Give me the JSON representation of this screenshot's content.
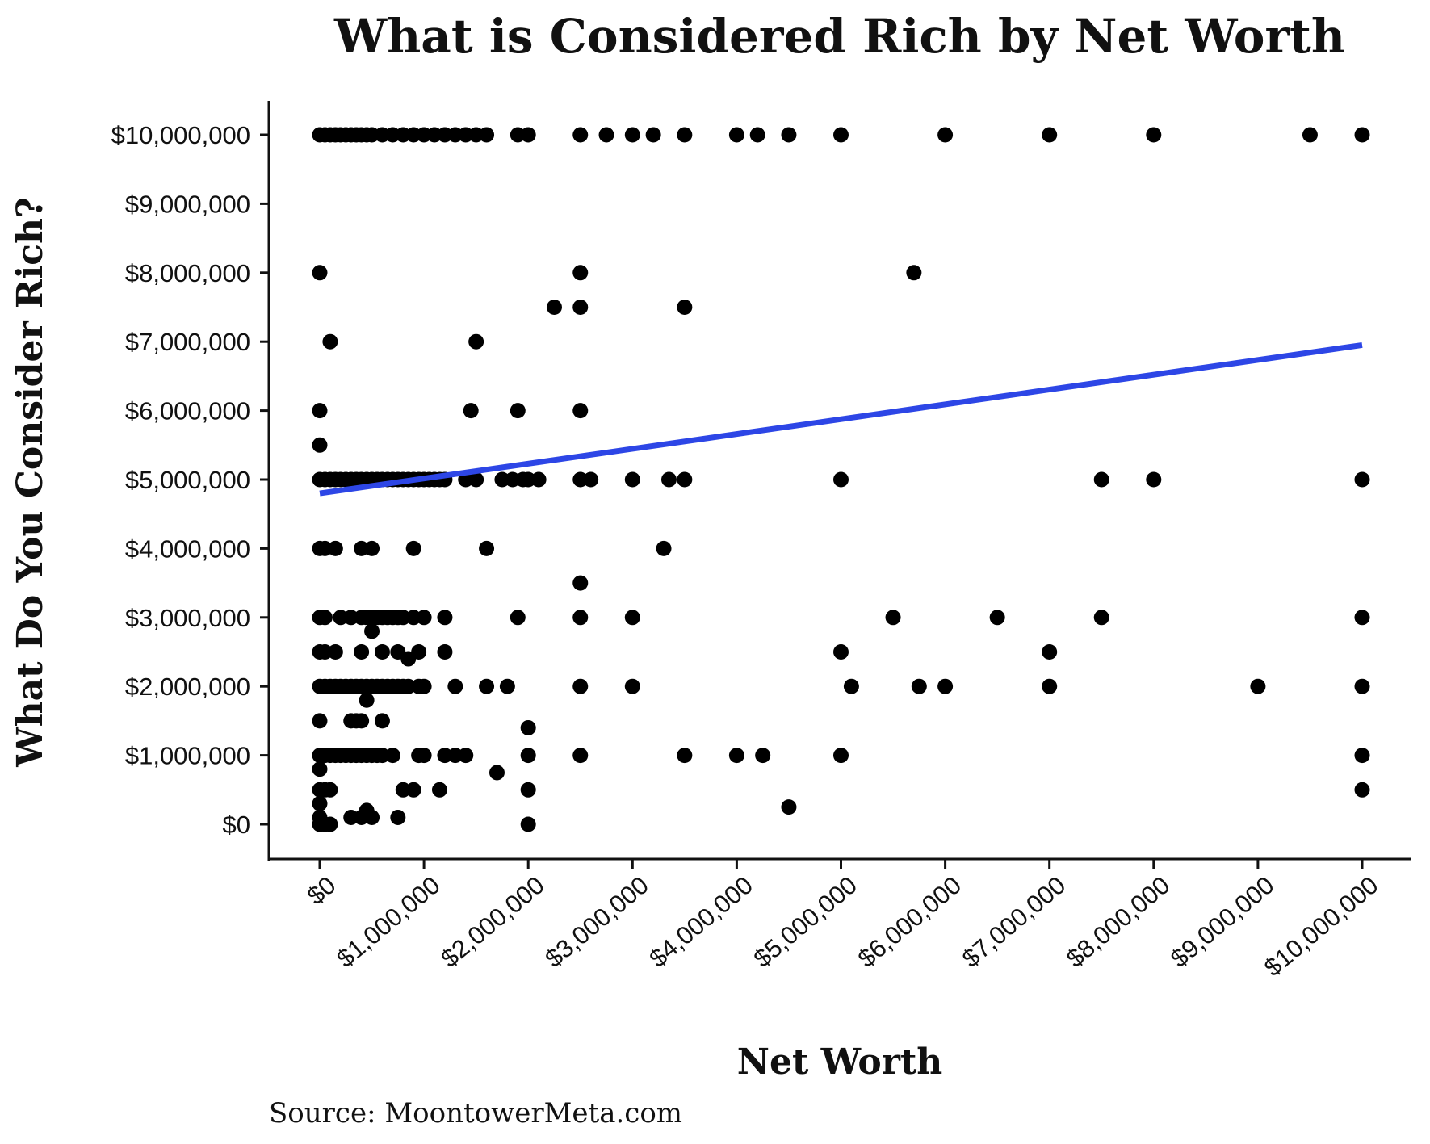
{
  "chart_data": {
    "type": "scatter",
    "title": "What is Considered Rich by Net Worth",
    "xlabel": "Net Worth",
    "ylabel": "What Do You Consider Rich?",
    "source": "Source: MoontowerMeta.com",
    "xlim": [
      0,
      10000000
    ],
    "ylim": [
      0,
      10000000
    ],
    "x_ticks": [
      0,
      1000000,
      2000000,
      3000000,
      4000000,
      5000000,
      6000000,
      7000000,
      8000000,
      9000000,
      10000000
    ],
    "y_ticks": [
      0,
      1000000,
      2000000,
      3000000,
      4000000,
      5000000,
      6000000,
      7000000,
      8000000,
      9000000,
      10000000
    ],
    "x_tick_labels": [
      "$0",
      "$1,000,000",
      "$2,000,000",
      "$3,000,000",
      "$4,000,000",
      "$5,000,000",
      "$6,000,000",
      "$7,000,000",
      "$8,000,000",
      "$9,000,000",
      "$10,000,000"
    ],
    "y_tick_labels": [
      "$0",
      "$1,000,000",
      "$2,000,000",
      "$3,000,000",
      "$4,000,000",
      "$5,000,000",
      "$6,000,000",
      "$7,000,000",
      "$8,000,000",
      "$9,000,000",
      "$10,000,000"
    ],
    "grid": false,
    "point_color": "#000000",
    "trend_color": "#2d46e6",
    "trendline": {
      "x": [
        0,
        10000000
      ],
      "y": [
        4800000,
        6950000
      ]
    },
    "points": [
      [
        0,
        10000000
      ],
      [
        50000,
        10000000
      ],
      [
        100000,
        10000000
      ],
      [
        150000,
        10000000
      ],
      [
        200000,
        10000000
      ],
      [
        250000,
        10000000
      ],
      [
        300000,
        10000000
      ],
      [
        350000,
        10000000
      ],
      [
        400000,
        10000000
      ],
      [
        450000,
        10000000
      ],
      [
        500000,
        10000000
      ],
      [
        600000,
        10000000
      ],
      [
        700000,
        10000000
      ],
      [
        800000,
        10000000
      ],
      [
        900000,
        10000000
      ],
      [
        1000000,
        10000000
      ],
      [
        1100000,
        10000000
      ],
      [
        1200000,
        10000000
      ],
      [
        1300000,
        10000000
      ],
      [
        1400000,
        10000000
      ],
      [
        1500000,
        10000000
      ],
      [
        1600000,
        10000000
      ],
      [
        1900000,
        10000000
      ],
      [
        2000000,
        10000000
      ],
      [
        2500000,
        10000000
      ],
      [
        2750000,
        10000000
      ],
      [
        3000000,
        10000000
      ],
      [
        3200000,
        10000000
      ],
      [
        3500000,
        10000000
      ],
      [
        4000000,
        10000000
      ],
      [
        4200000,
        10000000
      ],
      [
        4500000,
        10000000
      ],
      [
        5000000,
        10000000
      ],
      [
        6000000,
        10000000
      ],
      [
        7000000,
        10000000
      ],
      [
        8000000,
        10000000
      ],
      [
        9500000,
        10000000
      ],
      [
        10000000,
        10000000
      ],
      [
        0,
        8000000
      ],
      [
        2500000,
        8000000
      ],
      [
        5700000,
        8000000
      ],
      [
        2250000,
        7500000
      ],
      [
        2500000,
        7500000
      ],
      [
        3500000,
        7500000
      ],
      [
        100000,
        7000000
      ],
      [
        1500000,
        7000000
      ],
      [
        0,
        6000000
      ],
      [
        1450000,
        6000000
      ],
      [
        1900000,
        6000000
      ],
      [
        2500000,
        6000000
      ],
      [
        0,
        5500000
      ],
      [
        0,
        5000000
      ],
      [
        50000,
        5000000
      ],
      [
        100000,
        5000000
      ],
      [
        150000,
        5000000
      ],
      [
        200000,
        5000000
      ],
      [
        250000,
        5000000
      ],
      [
        300000,
        5000000
      ],
      [
        350000,
        5000000
      ],
      [
        400000,
        5000000
      ],
      [
        450000,
        5000000
      ],
      [
        500000,
        5000000
      ],
      [
        550000,
        5000000
      ],
      [
        600000,
        5000000
      ],
      [
        650000,
        5000000
      ],
      [
        700000,
        5000000
      ],
      [
        750000,
        5000000
      ],
      [
        800000,
        5000000
      ],
      [
        850000,
        5000000
      ],
      [
        900000,
        5000000
      ],
      [
        950000,
        5000000
      ],
      [
        1000000,
        5000000
      ],
      [
        1050000,
        5000000
      ],
      [
        1100000,
        5000000
      ],
      [
        1150000,
        5000000
      ],
      [
        1200000,
        5000000
      ],
      [
        1400000,
        5000000
      ],
      [
        1500000,
        5000000
      ],
      [
        1750000,
        5000000
      ],
      [
        1850000,
        5000000
      ],
      [
        1950000,
        5000000
      ],
      [
        2000000,
        5000000
      ],
      [
        2100000,
        5000000
      ],
      [
        2500000,
        5000000
      ],
      [
        2600000,
        5000000
      ],
      [
        3000000,
        5000000
      ],
      [
        3350000,
        5000000
      ],
      [
        3500000,
        5000000
      ],
      [
        5000000,
        5000000
      ],
      [
        7500000,
        5000000
      ],
      [
        8000000,
        5000000
      ],
      [
        10000000,
        5000000
      ],
      [
        0,
        4000000
      ],
      [
        50000,
        4000000
      ],
      [
        150000,
        4000000
      ],
      [
        400000,
        4000000
      ],
      [
        500000,
        4000000
      ],
      [
        900000,
        4000000
      ],
      [
        1600000,
        4000000
      ],
      [
        3300000,
        4000000
      ],
      [
        2500000,
        3500000
      ],
      [
        0,
        3000000
      ],
      [
        50000,
        3000000
      ],
      [
        200000,
        3000000
      ],
      [
        300000,
        3000000
      ],
      [
        400000,
        3000000
      ],
      [
        450000,
        3000000
      ],
      [
        500000,
        3000000
      ],
      [
        550000,
        3000000
      ],
      [
        600000,
        3000000
      ],
      [
        650000,
        3000000
      ],
      [
        700000,
        3000000
      ],
      [
        750000,
        3000000
      ],
      [
        800000,
        3000000
      ],
      [
        900000,
        3000000
      ],
      [
        1000000,
        3000000
      ],
      [
        1200000,
        3000000
      ],
      [
        1900000,
        3000000
      ],
      [
        2500000,
        3000000
      ],
      [
        3000000,
        3000000
      ],
      [
        5500000,
        3000000
      ],
      [
        6500000,
        3000000
      ],
      [
        7500000,
        3000000
      ],
      [
        10000000,
        3000000
      ],
      [
        500000,
        2800000
      ],
      [
        0,
        2500000
      ],
      [
        50000,
        2500000
      ],
      [
        150000,
        2500000
      ],
      [
        400000,
        2500000
      ],
      [
        600000,
        2500000
      ],
      [
        750000,
        2500000
      ],
      [
        950000,
        2500000
      ],
      [
        1200000,
        2500000
      ],
      [
        5000000,
        2500000
      ],
      [
        7000000,
        2500000
      ],
      [
        850000,
        2400000
      ],
      [
        0,
        2000000
      ],
      [
        50000,
        2000000
      ],
      [
        100000,
        2000000
      ],
      [
        150000,
        2000000
      ],
      [
        200000,
        2000000
      ],
      [
        250000,
        2000000
      ],
      [
        300000,
        2000000
      ],
      [
        350000,
        2000000
      ],
      [
        400000,
        2000000
      ],
      [
        450000,
        2000000
      ],
      [
        500000,
        2000000
      ],
      [
        550000,
        2000000
      ],
      [
        600000,
        2000000
      ],
      [
        650000,
        2000000
      ],
      [
        700000,
        2000000
      ],
      [
        750000,
        2000000
      ],
      [
        800000,
        2000000
      ],
      [
        850000,
        2000000
      ],
      [
        950000,
        2000000
      ],
      [
        1000000,
        2000000
      ],
      [
        1300000,
        2000000
      ],
      [
        1600000,
        2000000
      ],
      [
        1800000,
        2000000
      ],
      [
        2500000,
        2000000
      ],
      [
        3000000,
        2000000
      ],
      [
        5100000,
        2000000
      ],
      [
        5750000,
        2000000
      ],
      [
        6000000,
        2000000
      ],
      [
        7000000,
        2000000
      ],
      [
        9000000,
        2000000
      ],
      [
        10000000,
        2000000
      ],
      [
        450000,
        1800000
      ],
      [
        0,
        1500000
      ],
      [
        300000,
        1500000
      ],
      [
        350000,
        1500000
      ],
      [
        400000,
        1500000
      ],
      [
        600000,
        1500000
      ],
      [
        2000000,
        1400000
      ],
      [
        0,
        1000000
      ],
      [
        50000,
        1000000
      ],
      [
        100000,
        1000000
      ],
      [
        150000,
        1000000
      ],
      [
        200000,
        1000000
      ],
      [
        250000,
        1000000
      ],
      [
        300000,
        1000000
      ],
      [
        350000,
        1000000
      ],
      [
        400000,
        1000000
      ],
      [
        450000,
        1000000
      ],
      [
        500000,
        1000000
      ],
      [
        550000,
        1000000
      ],
      [
        600000,
        1000000
      ],
      [
        700000,
        1000000
      ],
      [
        950000,
        1000000
      ],
      [
        1000000,
        1000000
      ],
      [
        1200000,
        1000000
      ],
      [
        1300000,
        1000000
      ],
      [
        1400000,
        1000000
      ],
      [
        2000000,
        1000000
      ],
      [
        2500000,
        1000000
      ],
      [
        3500000,
        1000000
      ],
      [
        4000000,
        1000000
      ],
      [
        4250000,
        1000000
      ],
      [
        5000000,
        1000000
      ],
      [
        10000000,
        1000000
      ],
      [
        0,
        800000
      ],
      [
        1700000,
        750000
      ],
      [
        0,
        500000
      ],
      [
        50000,
        500000
      ],
      [
        100000,
        500000
      ],
      [
        800000,
        500000
      ],
      [
        900000,
        500000
      ],
      [
        1150000,
        500000
      ],
      [
        2000000,
        500000
      ],
      [
        10000000,
        500000
      ],
      [
        0,
        300000
      ],
      [
        4500000,
        250000
      ],
      [
        450000,
        200000
      ],
      [
        0,
        100000
      ],
      [
        300000,
        100000
      ],
      [
        400000,
        100000
      ],
      [
        500000,
        100000
      ],
      [
        750000,
        100000
      ],
      [
        0,
        0
      ],
      [
        50000,
        0
      ],
      [
        100000,
        0
      ],
      [
        2000000,
        0
      ]
    ]
  }
}
